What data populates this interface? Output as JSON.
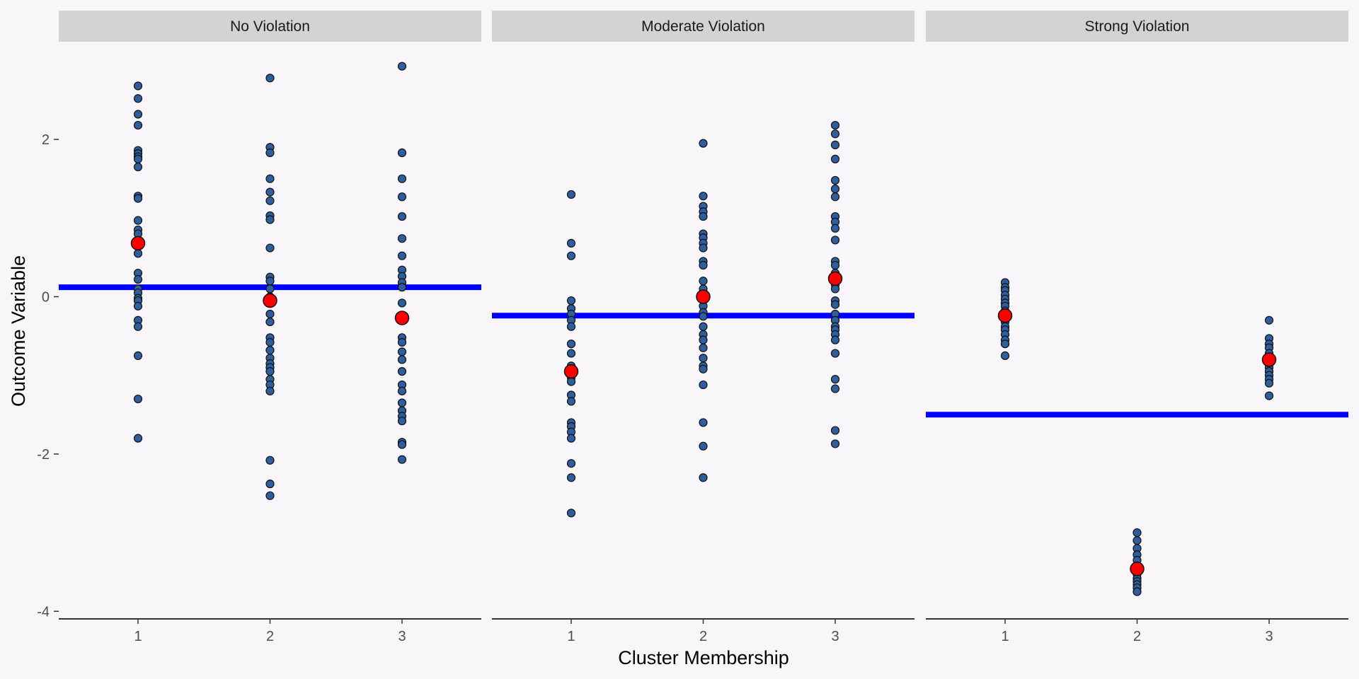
{
  "chart_data": {
    "type": "scatter",
    "xlabel": "Cluster Membership",
    "ylabel": "Outcome Variable",
    "categories": [
      "1",
      "2",
      "3"
    ],
    "ylim": [
      -4.1,
      3.2
    ],
    "yticks": [
      2,
      0,
      -2,
      -4
    ],
    "ytick_labels": [
      "2",
      "0",
      "-2",
      "-4"
    ],
    "colors": {
      "background": "#f8f6f8",
      "strip": "#d3d3d3",
      "point_fill": "#2e5e9e",
      "point_stroke": "#111111",
      "mean_fill": "#ff0000",
      "grand_mean_line": "#0000ff",
      "axis": "#333333"
    },
    "panels": [
      {
        "title": "No Violation",
        "grand_mean": 0.12,
        "clusters": [
          {
            "x": "1",
            "mean": 0.68,
            "values": [
              2.68,
              2.52,
              2.32,
              2.18,
              1.86,
              1.82,
              1.78,
              1.75,
              1.65,
              1.28,
              1.25,
              0.97,
              0.85,
              0.8,
              0.55,
              0.3,
              0.22,
              0.1,
              0.05,
              -0.02,
              -0.05,
              -0.12,
              -0.3,
              -0.38,
              -0.75,
              -1.3,
              -1.8
            ]
          },
          {
            "x": "2",
            "mean": -0.05,
            "values": [
              2.78,
              1.9,
              1.83,
              1.5,
              1.33,
              1.22,
              1.03,
              0.98,
              0.62,
              0.25,
              0.2,
              0.1,
              0.0,
              -0.22,
              -0.32,
              -0.52,
              -0.58,
              -0.68,
              -0.78,
              -0.85,
              -0.9,
              -0.95,
              -1.05,
              -1.12,
              -1.2,
              -2.08,
              -2.38,
              -2.53
            ]
          },
          {
            "x": "3",
            "mean": -0.27,
            "values": [
              2.93,
              1.83,
              1.5,
              1.27,
              1.02,
              0.74,
              0.52,
              0.34,
              0.26,
              0.18,
              0.12,
              -0.08,
              -0.28,
              -0.52,
              -0.58,
              -0.7,
              -0.8,
              -0.95,
              -1.12,
              -1.2,
              -1.35,
              -1.45,
              -1.52,
              -1.58,
              -1.85,
              -1.88,
              -2.07
            ]
          }
        ]
      },
      {
        "title": "Moderate Violation",
        "grand_mean": -0.24,
        "clusters": [
          {
            "x": "1",
            "mean": -0.95,
            "values": [
              1.3,
              0.68,
              0.52,
              -0.05,
              -0.15,
              -0.22,
              -0.3,
              -0.38,
              -0.6,
              -0.72,
              -0.88,
              -0.95,
              -1.03,
              -1.08,
              -1.25,
              -1.33,
              -1.6,
              -1.65,
              -1.72,
              -1.8,
              -2.12,
              -2.3,
              -2.75
            ]
          },
          {
            "x": "2",
            "mean": 0.0,
            "values": [
              1.95,
              1.28,
              1.15,
              1.08,
              1.02,
              0.8,
              0.75,
              0.68,
              0.62,
              0.45,
              0.4,
              0.2,
              0.1,
              0.02,
              -0.05,
              -0.12,
              -0.2,
              -0.25,
              -0.38,
              -0.48,
              -0.55,
              -0.65,
              -0.78,
              -0.88,
              -0.92,
              -1.12,
              -1.6,
              -1.9,
              -2.3
            ]
          },
          {
            "x": "3",
            "mean": 0.23,
            "values": [
              2.18,
              2.07,
              1.93,
              1.75,
              1.48,
              1.37,
              1.27,
              1.02,
              0.95,
              0.87,
              0.72,
              0.45,
              0.4,
              0.3,
              0.15,
              0.1,
              -0.05,
              -0.1,
              -0.22,
              -0.3,
              -0.38,
              -0.42,
              -0.48,
              -0.55,
              -0.72,
              -1.05,
              -1.17,
              -1.7,
              -1.87
            ]
          }
        ]
      },
      {
        "title": "Strong Violation",
        "grand_mean": -1.5,
        "clusters": [
          {
            "x": "1",
            "mean": -0.24,
            "values": [
              0.18,
              0.12,
              0.08,
              0.02,
              -0.03,
              -0.08,
              -0.12,
              -0.18,
              -0.22,
              -0.27,
              -0.32,
              -0.38,
              -0.42,
              -0.48,
              -0.55,
              -0.6,
              -0.75
            ]
          },
          {
            "x": "2",
            "mean": -3.46,
            "values": [
              -3.0,
              -3.1,
              -3.2,
              -3.28,
              -3.35,
              -3.42,
              -3.48,
              -3.53,
              -3.58,
              -3.62,
              -3.66,
              -3.7,
              -3.75
            ]
          },
          {
            "x": "3",
            "mean": -0.8,
            "values": [
              -0.3,
              -0.53,
              -0.6,
              -0.65,
              -0.72,
              -0.78,
              -0.85,
              -0.9,
              -0.95,
              -1.0,
              -1.05,
              -1.1,
              -1.26
            ]
          }
        ]
      }
    ]
  }
}
